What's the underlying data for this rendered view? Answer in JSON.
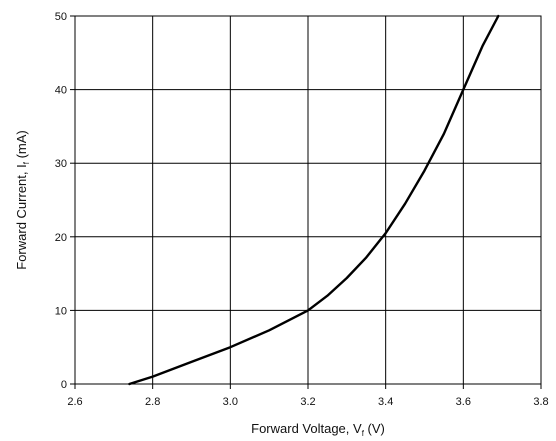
{
  "chart_data": {
    "type": "line",
    "x_axis": {
      "label_main": "Forward Voltage, V",
      "label_subscript": "f",
      "label_suffix": " (V)",
      "range": [
        2.6,
        3.8
      ],
      "ticks": [
        "2.6",
        "2.8",
        "3.0",
        "3.2",
        "3.4",
        "3.6",
        "3.8"
      ]
    },
    "y_axis": {
      "label_main": "Forward Current, I",
      "label_subscript": "f",
      "label_suffix": " (mA)",
      "range": [
        0,
        50
      ],
      "ticks": [
        "0",
        "10",
        "20",
        "30",
        "40",
        "50"
      ]
    },
    "grid": true,
    "series": [
      {
        "color": "#000000",
        "x": [
          2.74,
          2.8,
          2.9,
          3.0,
          3.1,
          3.2,
          3.25,
          3.3,
          3.35,
          3.4,
          3.45,
          3.5,
          3.55,
          3.6,
          3.65,
          3.69
        ],
        "y": [
          0,
          1.0,
          3.0,
          5.0,
          7.3,
          10.0,
          12.0,
          14.4,
          17.2,
          20.5,
          24.5,
          29.0,
          34.0,
          40.0,
          46.0,
          50.0
        ]
      }
    ]
  }
}
